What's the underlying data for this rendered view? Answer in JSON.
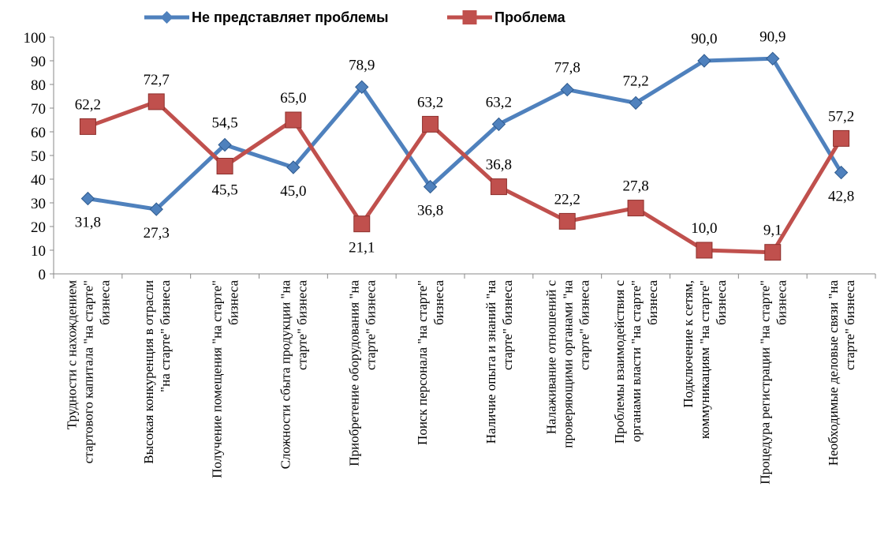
{
  "chart_data": {
    "type": "line",
    "ylim": [
      0,
      100
    ],
    "yticks": [
      0,
      10,
      20,
      30,
      40,
      50,
      60,
      70,
      80,
      90,
      100
    ],
    "grid": false,
    "legend_position": "top",
    "categories": [
      [
        "Трудности с нахождением",
        "стартового капитала \"на старте\"",
        "бизнеса"
      ],
      [
        "Высокая конкуренция в отрасли",
        "\"на старте\" бизнеса"
      ],
      [
        "Получение помещения \"на старте\"",
        "бизнеса"
      ],
      [
        "Сложности сбыта продукции \"на",
        "старте\" бизнеса"
      ],
      [
        "Приобретение оборудования \"на",
        "старте\" бизнеса"
      ],
      [
        "Поиск персонала \"на старте\"",
        "бизнеса"
      ],
      [
        "Наличие опыта и знаний \"на",
        "старте\" бизнеса"
      ],
      [
        "Налаживание отношений с",
        "проверяющими органами \"на",
        "старте\" бизнеса"
      ],
      [
        "Проблемы взаимодействия с",
        "органами власти \"на старте\"",
        "бизнеса"
      ],
      [
        "Подключение к сетям,",
        "коммуникациям \"на старте\"",
        "бизнеса"
      ],
      [
        "Процедура регистрации \"на старте\"",
        "бизнеса"
      ],
      [
        "Необходимые деловые связи \"на",
        "старте\" бизнеса"
      ]
    ],
    "series": [
      {
        "name": "Не представляет проблемы",
        "color": "#4f81bd",
        "marker": "diamond",
        "values": [
          31.8,
          27.3,
          54.5,
          45.0,
          78.9,
          36.8,
          63.2,
          77.8,
          72.2,
          90.0,
          90.9,
          42.8
        ],
        "labels": [
          "31,8",
          "27,3",
          "54,5",
          "45,0",
          "78,9",
          "36,8",
          "63,2",
          "77,8",
          "72,2",
          "90,0",
          "90,9",
          "42,8"
        ]
      },
      {
        "name": "Проблема",
        "color": "#c0504d",
        "marker": "square",
        "values": [
          62.2,
          72.7,
          45.5,
          65.0,
          21.1,
          63.2,
          36.8,
          22.2,
          27.8,
          10.0,
          9.1,
          57.2
        ],
        "labels": [
          "62,2",
          "72,7",
          "45,5",
          "65,0",
          "21,1",
          "63,2",
          "36,8",
          "22,2",
          "27,8",
          "10,0",
          "9,1",
          "57,2"
        ]
      }
    ]
  }
}
